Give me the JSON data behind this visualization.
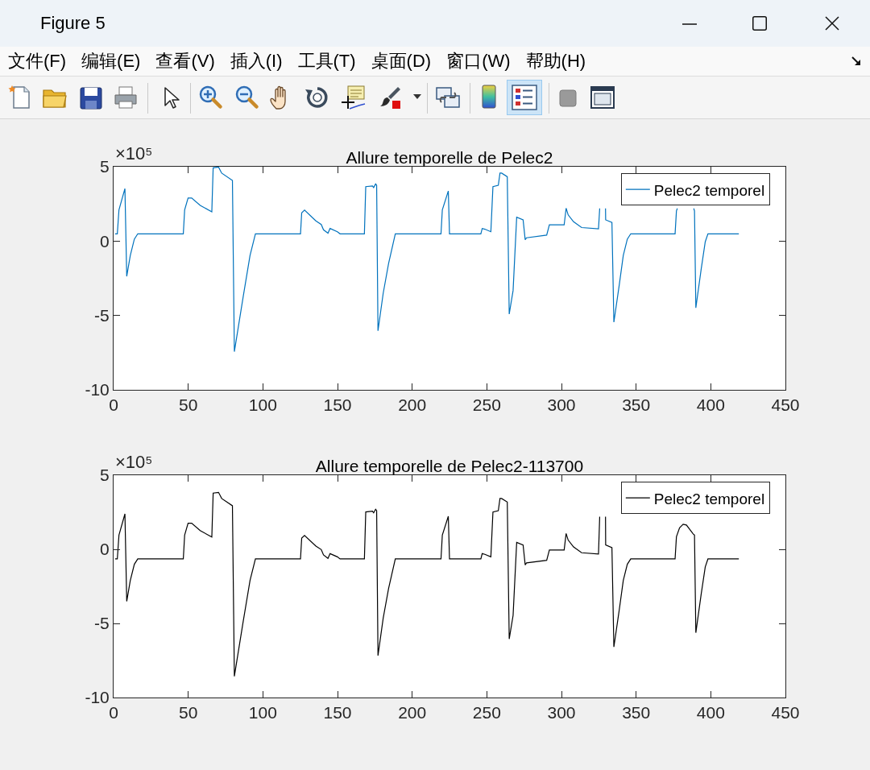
{
  "chart_data": [
    {
      "type": "other",
      "title": "Figure 5",
      "annotations": [
        "文件(F)",
        "编辑(E)",
        "查看(V)",
        "插入(I)",
        "工具(T)",
        "桌面(D)",
        "窗口(W)",
        "帮助(H)"
      ]
    },
    {
      "type": "line",
      "title": "Allure temporelle de Pelec2",
      "annotations": [
        "×10⁵"
      ],
      "x": [
        1,
        2.5,
        3.6,
        7.6,
        8.8,
        11.2,
        13.9,
        16.2,
        46.7,
        47.6,
        49.9,
        52.3,
        58,
        65.8,
        66.7,
        70.3,
        72.4,
        79.6,
        80.9,
        86.9,
        91.4,
        95,
        125.2,
        126,
        127.9,
        135.5,
        139.1,
        140.6,
        143.6,
        145,
        149.9,
        151.7,
        168,
        168.9,
        173.4,
        174.2,
        175.5,
        176.2,
        177.1,
        180.6,
        184.2,
        188.7,
        219.3,
        220.2,
        224.2,
        225,
        246,
        246.9,
        248.7,
        252.7,
        254.1,
        257.7,
        258.8,
        259.9,
        263.7,
        265,
        267.6,
        270,
        274.3,
        275.7,
        276.6,
        290.1,
        291.9,
        301.8,
        303.1,
        304.5,
        308.1,
        313.5,
        324.8,
        325.6,
        327.5,
        329.5,
        329.6,
        333.8,
        335.1,
        338.7,
        341.4,
        344.1,
        346.4,
        376.1,
        377,
        377.6,
        383,
        388.6,
        389.1,
        390,
        393.6,
        396.3,
        398.1,
        418.8
      ],
      "series": [
        {
          "name": "Pelec2 temporel",
          "color": "#0072bd",
          "values": [
            0.49,
            0.49,
            2.1,
            3.53,
            -2.37,
            -0.96,
            0.13,
            0.49,
            0.49,
            2.1,
            2.9,
            2.9,
            2.4,
            1.97,
            4.93,
            4.98,
            4.57,
            4.08,
            -7.43,
            -3.68,
            -0.96,
            0.49,
            0.49,
            1.9,
            2.08,
            1.36,
            1.12,
            0.76,
            0.53,
            0.85,
            0.63,
            0.49,
            0.49,
            3.66,
            3.71,
            3.6,
            3.84,
            3.75,
            -6.03,
            -3.5,
            -1.5,
            0.49,
            0.49,
            2.1,
            3.37,
            0.49,
            0.49,
            0.85,
            0.8,
            0.63,
            3.66,
            3.75,
            4.57,
            4.57,
            4.33,
            -4.91,
            -3.32,
            1.61,
            1.43,
            0.09,
            0.22,
            0.4,
            1.09,
            1.09,
            2.21,
            1.76,
            1.3,
            0.91,
            0.82,
            2.2,
            null,
            2.2,
            1.43,
            1.25,
            -5.45,
            -2.95,
            -0.96,
            0.13,
            0.49,
            0.49,
            2.03,
            2.2,
            null,
            2.2,
            2.03,
            -4.49,
            -1.87,
            -0.05,
            0.49,
            0.49
          ]
        }
      ],
      "xlim": [
        0,
        450
      ],
      "xticks": [
        0,
        50,
        100,
        150,
        200,
        250,
        300,
        350,
        400,
        450
      ],
      "ylim": [
        -10,
        5
      ],
      "yticks": [
        -10,
        -5,
        0,
        5
      ],
      "legend": "top right",
      "line_style": "solid"
    },
    {
      "type": "line",
      "title": "Allure temporelle de Pelec2-113700",
      "annotations": [
        "×10⁵"
      ],
      "x": [
        1,
        2.5,
        3.6,
        7.6,
        8.8,
        11.2,
        13.9,
        16.2,
        46.7,
        47.6,
        49.9,
        52.3,
        58,
        65.8,
        66.7,
        70.3,
        72.4,
        79.6,
        80.9,
        86.9,
        91.4,
        95,
        125.2,
        126,
        127.9,
        135.5,
        139.1,
        140.6,
        143.6,
        145,
        149.9,
        151.7,
        168,
        168.9,
        173.4,
        174.2,
        175.5,
        176.2,
        177.1,
        180.6,
        184.2,
        188.7,
        219.3,
        220.2,
        224.2,
        225,
        246,
        246.9,
        248.7,
        252.7,
        254.1,
        257.7,
        258.8,
        259.9,
        263.7,
        265,
        267.6,
        270,
        274.3,
        275.7,
        276.6,
        290.1,
        291.9,
        301.8,
        303.1,
        304.5,
        308.1,
        313.5,
        324.8,
        325.6,
        327.5,
        329.5,
        329.6,
        333.8,
        335.1,
        338.7,
        341.4,
        344.1,
        346.4,
        376.1,
        377,
        379.1,
        381.5,
        383.7,
        388.2,
        389.1,
        390,
        393.6,
        396.3,
        398.1,
        418.8
      ],
      "series": [
        {
          "name": "Pelec2 temporel",
          "color": "#000000",
          "values": [
            -0.65,
            -0.65,
            0.96,
            2.39,
            -3.51,
            -2.1,
            -1.01,
            -0.65,
            -0.65,
            0.96,
            1.76,
            1.76,
            1.26,
            0.83,
            3.79,
            3.84,
            3.43,
            2.94,
            -8.57,
            -4.82,
            -2.1,
            -0.65,
            -0.65,
            0.76,
            0.94,
            0.22,
            -0.02,
            -0.38,
            -0.61,
            -0.29,
            -0.51,
            -0.65,
            -0.65,
            2.52,
            2.57,
            2.46,
            2.7,
            2.61,
            -7.17,
            -4.64,
            -2.64,
            -0.65,
            -0.65,
            0.96,
            2.23,
            -0.65,
            -0.65,
            -0.29,
            -0.34,
            -0.51,
            2.52,
            2.61,
            3.43,
            3.43,
            3.19,
            -6.05,
            -4.46,
            0.47,
            0.29,
            -1.05,
            -0.92,
            -0.74,
            -0.05,
            -0.05,
            1.07,
            0.62,
            0.16,
            -0.23,
            -0.32,
            2.2,
            null,
            2.2,
            0.29,
            0.11,
            -6.59,
            -4.09,
            -2.1,
            -1.01,
            -0.65,
            -0.65,
            0.85,
            1.45,
            1.69,
            1.64,
            1.04,
            0.96,
            -5.63,
            -3.01,
            -1.19,
            -0.65,
            -0.65
          ]
        }
      ],
      "xlim": [
        0,
        450
      ],
      "xticks": [
        0,
        50,
        100,
        150,
        200,
        250,
        300,
        350,
        400,
        450
      ],
      "ylim": [
        -10,
        5
      ],
      "yticks": [
        -10,
        -5,
        0,
        5
      ],
      "legend": "top right",
      "line_style": "solid"
    }
  ]
}
